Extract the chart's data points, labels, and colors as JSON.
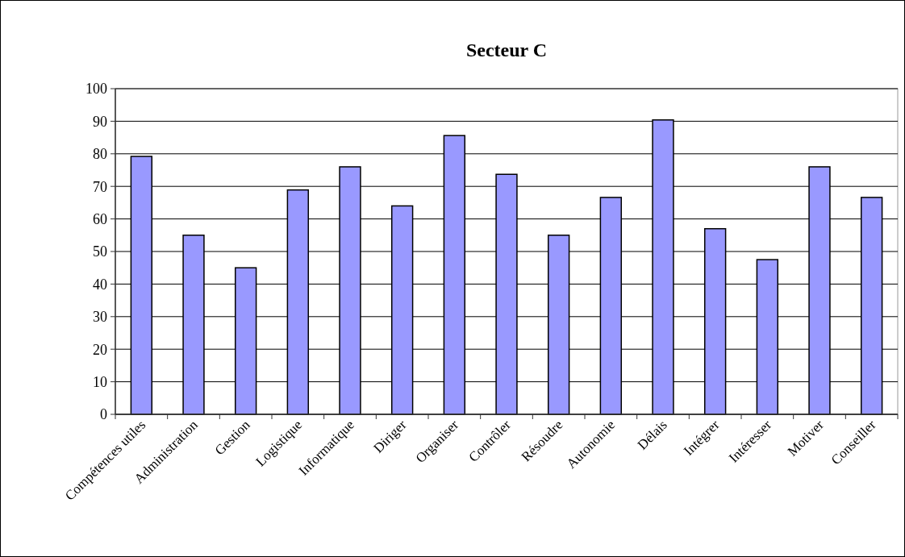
{
  "chart_data": {
    "type": "bar",
    "title": "Secteur C",
    "categories": [
      "Compétences utiles",
      "Administration",
      "Gestion",
      "Logistique",
      "Informatique",
      "Diriger",
      "Organiser",
      "Contrôler",
      "Résoudre",
      "Autonomie",
      "Délais",
      "Intégrer",
      "Intéresser",
      "Motiver",
      "Conseiller"
    ],
    "values": [
      79.2,
      55,
      45,
      68.9,
      76,
      64,
      85.6,
      73.7,
      55,
      66.6,
      90.4,
      57,
      47.5,
      76,
      66.6
    ],
    "color": "#9999ff",
    "ylim": [
      0,
      100
    ],
    "yticks": [
      0,
      10,
      20,
      30,
      40,
      50,
      60,
      70,
      80,
      90,
      100
    ],
    "grid": "y"
  }
}
